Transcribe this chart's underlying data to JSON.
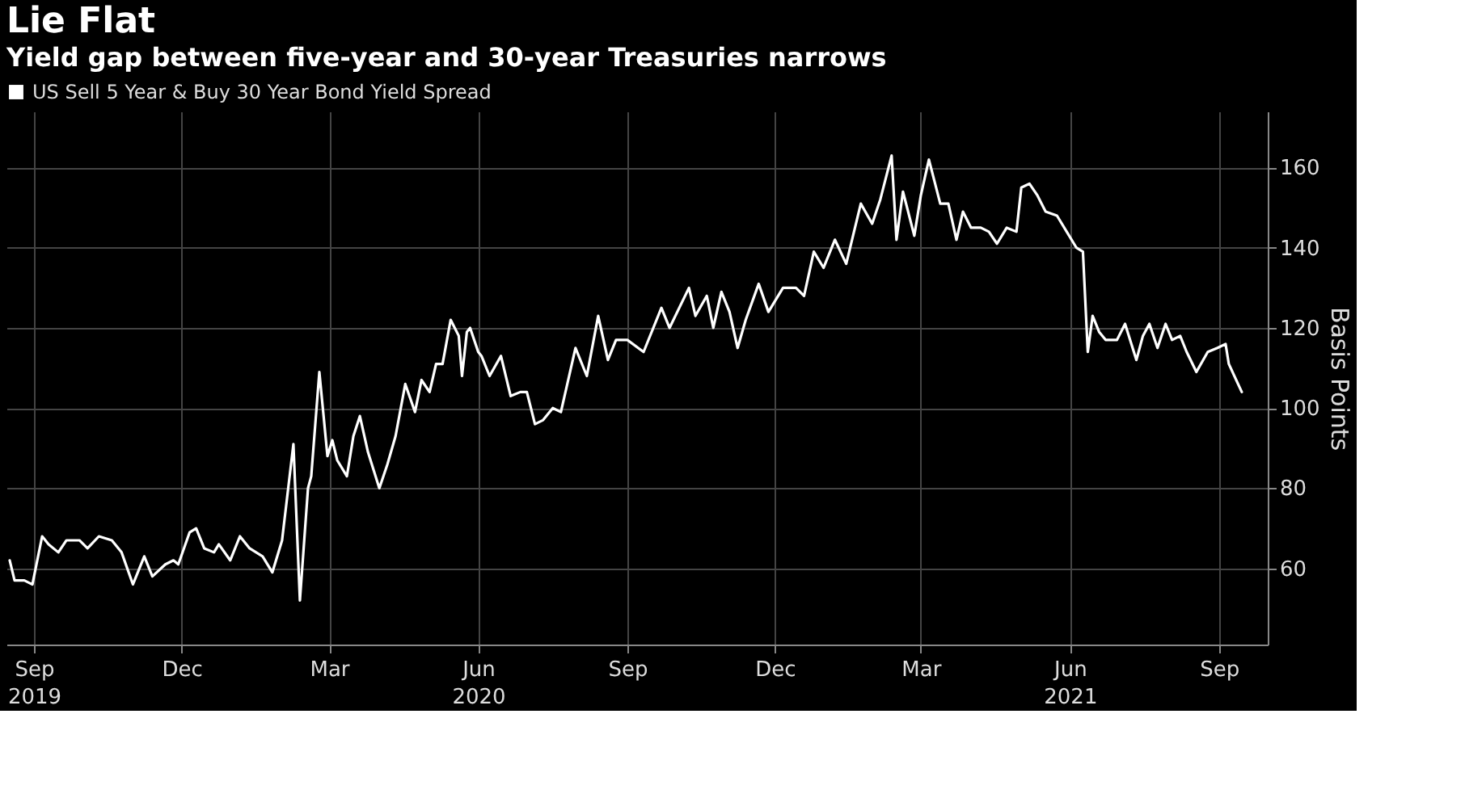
{
  "chart_data": {
    "type": "line",
    "title": "Lie Flat",
    "subtitle": "Yield gap between five-year and 30-year Treasuries narrows",
    "ylabel": "Basis Points",
    "x": [
      "2019-08-17",
      "2019-08-20",
      "2019-08-26",
      "2019-08-31",
      "2019-09-06",
      "2019-09-10",
      "2019-09-16",
      "2019-09-21",
      "2019-09-29",
      "2019-10-04",
      "2019-10-11",
      "2019-10-19",
      "2019-10-25",
      "2019-11-01",
      "2019-11-08",
      "2019-11-13",
      "2019-11-21",
      "2019-11-26",
      "2019-11-29",
      "2019-12-06",
      "2019-12-10",
      "2019-12-15",
      "2019-12-21",
      "2019-12-24",
      "2019-12-31",
      "2020-01-06",
      "2020-01-12",
      "2020-01-20",
      "2020-01-26",
      "2020-02-01",
      "2020-02-08",
      "2020-02-12",
      "2020-02-17",
      "2020-02-19",
      "2020-02-24",
      "2020-02-29",
      "2020-03-03",
      "2020-03-06",
      "2020-03-12",
      "2020-03-16",
      "2020-03-20",
      "2020-03-25",
      "2020-04-01",
      "2020-04-06",
      "2020-04-11",
      "2020-04-17",
      "2020-04-23",
      "2020-04-27",
      "2020-05-02",
      "2020-05-06",
      "2020-05-10",
      "2020-05-15",
      "2020-05-20",
      "2020-05-22",
      "2020-05-25",
      "2020-05-27",
      "2020-06-01",
      "2020-06-03",
      "2020-06-08",
      "2020-06-15",
      "2020-06-21",
      "2020-06-27",
      "2020-07-01",
      "2020-07-06",
      "2020-07-11",
      "2020-07-17",
      "2020-07-22",
      "2020-07-31",
      "2020-08-07",
      "2020-08-14",
      "2020-08-20",
      "2020-08-25",
      "2020-09-01",
      "2020-09-11",
      "2020-09-22",
      "2020-09-27",
      "2020-10-09",
      "2020-10-13",
      "2020-10-20",
      "2020-10-24",
      "2020-10-29",
      "2020-11-03",
      "2020-11-08",
      "2020-11-13",
      "2020-11-21",
      "2020-11-27",
      "2020-12-06",
      "2020-12-14",
      "2020-12-19",
      "2020-12-25",
      "2020-12-31",
      "2021-01-07",
      "2021-01-14",
      "2021-01-23",
      "2021-01-30",
      "2021-02-04",
      "2021-02-11",
      "2021-02-14",
      "2021-02-18",
      "2021-02-25",
      "2021-03-01",
      "2021-03-06",
      "2021-03-13",
      "2021-03-18",
      "2021-03-23",
      "2021-03-27",
      "2021-04-01",
      "2021-04-07",
      "2021-04-12",
      "2021-04-17",
      "2021-04-23",
      "2021-04-29",
      "2021-05-02",
      "2021-05-07",
      "2021-05-12",
      "2021-05-17",
      "2021-05-24",
      "2021-05-30",
      "2021-06-05",
      "2021-06-09",
      "2021-06-12",
      "2021-06-15",
      "2021-06-19",
      "2021-06-23",
      "2021-06-30",
      "2021-07-05",
      "2021-07-12",
      "2021-07-16",
      "2021-07-20",
      "2021-07-25",
      "2021-07-30",
      "2021-08-03",
      "2021-08-08",
      "2021-08-12",
      "2021-08-18",
      "2021-08-25",
      "2021-08-31",
      "2021-09-05",
      "2021-09-07",
      "2021-09-15"
    ],
    "series": [
      {
        "name": "US Sell 5 Year & Buy 30 Year Bond Yield Spread",
        "color": "#ffffff",
        "values": [
          62,
          57,
          57,
          56,
          68,
          66,
          64,
          67,
          67,
          65,
          68,
          67,
          64,
          56,
          63,
          58,
          61,
          62,
          61,
          69,
          70,
          65,
          64,
          66,
          62,
          68,
          65,
          63,
          59,
          67,
          91,
          52,
          80,
          83,
          109,
          88,
          92,
          87,
          83,
          93,
          98,
          89,
          80,
          86,
          93,
          106,
          99,
          107,
          104,
          111,
          111,
          122,
          118,
          108,
          119,
          120,
          114,
          113,
          108,
          113,
          103,
          104,
          104,
          96,
          97,
          100,
          99,
          115,
          108,
          123,
          112,
          117,
          117,
          114,
          125,
          120,
          130,
          123,
          128,
          120,
          129,
          124,
          115,
          122,
          131,
          124,
          130,
          130,
          128,
          139,
          135,
          142,
          136,
          151,
          146,
          152,
          163,
          142,
          154,
          143,
          153,
          162,
          151,
          151,
          142,
          149,
          145,
          145,
          144,
          141,
          145,
          144,
          155,
          156,
          153,
          149,
          148,
          144,
          140,
          139,
          114,
          123,
          119,
          117,
          117,
          121,
          112,
          118,
          121,
          115,
          121,
          117,
          118,
          114,
          109,
          114,
          115,
          116,
          111,
          104
        ]
      }
    ],
    "xlim": [
      "2019-08-15",
      "2021-10-01"
    ],
    "xticks": [
      {
        "value": "2019-09-01",
        "label": "Sep\n2019"
      },
      {
        "value": "2019-12-01",
        "label": "Dec"
      },
      {
        "value": "2020-03-01",
        "label": "Mar"
      },
      {
        "value": "2020-06-01",
        "label": "Jun\n2020"
      },
      {
        "value": "2020-09-01",
        "label": "Sep"
      },
      {
        "value": "2020-12-01",
        "label": "Dec"
      },
      {
        "value": "2021-03-01",
        "label": "Mar"
      },
      {
        "value": "2021-06-01",
        "label": "Jun\n2021"
      },
      {
        "value": "2021-09-01",
        "label": "Sep"
      }
    ],
    "ylim": [
      41,
      174
    ],
    "yticks": [
      60,
      80,
      100,
      120,
      140,
      160
    ],
    "grid": true,
    "legend": "top left",
    "marker": "none",
    "line_style": "solid"
  }
}
